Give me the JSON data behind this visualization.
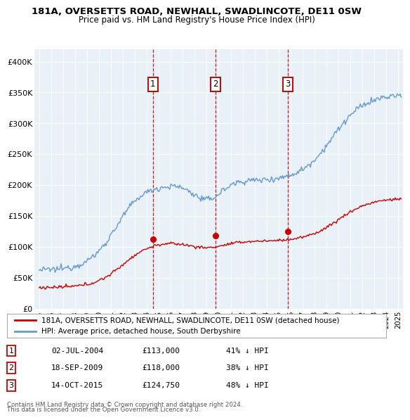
{
  "title1": "181A, OVERSETTS ROAD, NEWHALL, SWADLINCOTE, DE11 0SW",
  "title2": "Price paid vs. HM Land Registry's House Price Index (HPI)",
  "bg_color": "#e8f0f8",
  "sale_color": "#cc0000",
  "hpi_color": "#6699cc",
  "dashed_color": "#cc0000",
  "sales": [
    {
      "date": 2004.5,
      "price": 113000,
      "label": "1"
    },
    {
      "date": 2009.72,
      "price": 118000,
      "label": "2"
    },
    {
      "date": 2015.79,
      "price": 124750,
      "label": "3"
    }
  ],
  "legend_sale": "181A, OVERSETTS ROAD, NEWHALL, SWADLINCOTE, DE11 0SW (detached house)",
  "legend_hpi": "HPI: Average price, detached house, South Derbyshire",
  "table_rows": [
    [
      "1",
      "02-JUL-2004",
      "£113,000",
      "41% ↓ HPI"
    ],
    [
      "2",
      "18-SEP-2009",
      "£118,000",
      "38% ↓ HPI"
    ],
    [
      "3",
      "14-OCT-2015",
      "£124,750",
      "48% ↓ HPI"
    ]
  ],
  "footnote1": "Contains HM Land Registry data © Crown copyright and database right 2024.",
  "footnote2": "This data is licensed under the Open Government Licence v3.0.",
  "ylim": [
    0,
    420000
  ],
  "xlim": [
    1994.6,
    2025.4
  ]
}
